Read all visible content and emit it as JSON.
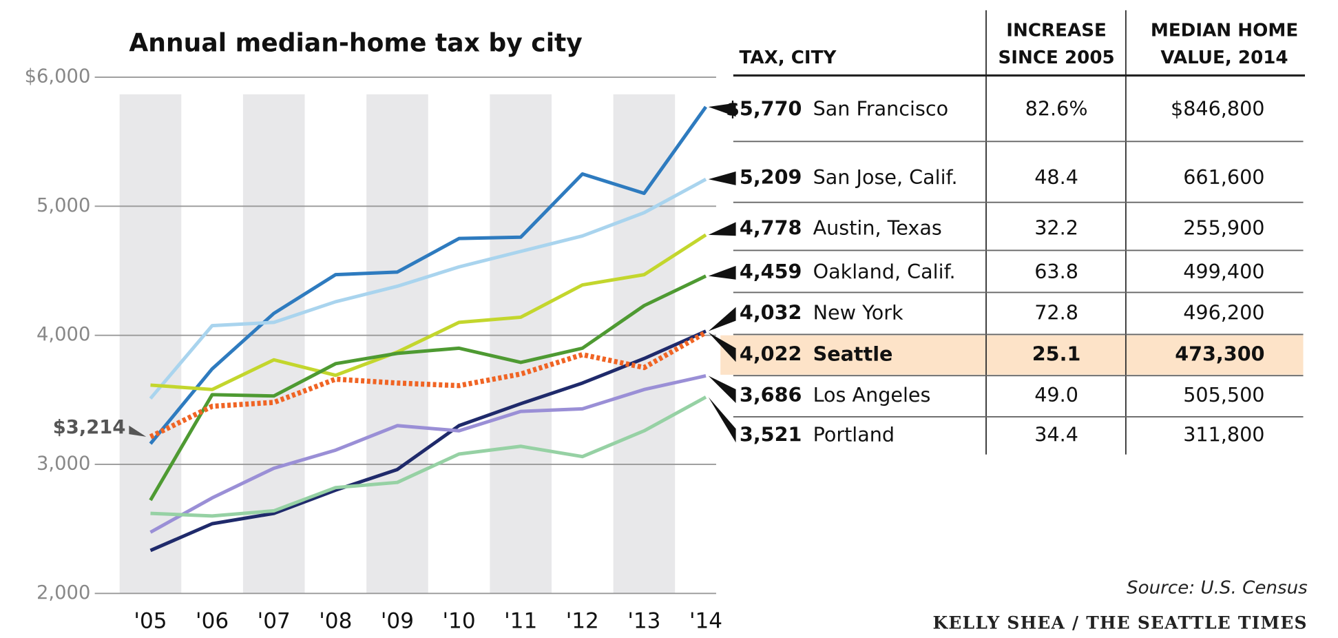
{
  "chart_data": {
    "type": "line",
    "title": "Annual median-home tax by city",
    "categories": [
      "'05",
      "'06",
      "'07",
      "'08",
      "'09",
      "'10",
      "'11",
      "'12",
      "'13",
      "'14"
    ],
    "ylim": [
      2000,
      6000
    ],
    "yticks": [
      {
        "value": 2000,
        "label": "2,000"
      },
      {
        "value": 3000,
        "label": "3,000"
      },
      {
        "value": 4000,
        "label": "4,000"
      },
      {
        "value": 5000,
        "label": "5,000"
      },
      {
        "value": 6000,
        "label": "$6,000"
      }
    ],
    "grid": true,
    "annotation": {
      "text": "$3,214",
      "series": 5,
      "index": 0
    },
    "series": [
      {
        "name": "San Francisco",
        "end_label": "$5,770",
        "color": "#2e7bbf",
        "values": [
          3160,
          3740,
          4170,
          4470,
          4490,
          4750,
          4760,
          5250,
          5100,
          5770
        ]
      },
      {
        "name": "San Jose, Calif.",
        "end_label": "5,209",
        "color": "#a9d4ee",
        "values": [
          3510,
          4075,
          4100,
          4260,
          4380,
          4530,
          4650,
          4770,
          4950,
          5209
        ]
      },
      {
        "name": "Austin, Texas",
        "end_label": "4,778",
        "color": "#c3d62d",
        "values": [
          3614,
          3580,
          3810,
          3690,
          3870,
          4100,
          4140,
          4390,
          4470,
          4778
        ]
      },
      {
        "name": "Oakland, Calif.",
        "end_label": "4,459",
        "color": "#4e9a32",
        "values": [
          2722,
          3540,
          3530,
          3780,
          3860,
          3900,
          3790,
          3900,
          4230,
          4459
        ]
      },
      {
        "name": "New York",
        "end_label": "4,032",
        "color": "#1f2a6b",
        "values": [
          2333,
          2540,
          2620,
          2800,
          2960,
          3300,
          3470,
          3630,
          3820,
          4032
        ]
      },
      {
        "name": "Seattle",
        "end_label": "4,022",
        "color": "#f06424",
        "dashed": true,
        "highlight": true,
        "values": [
          3214,
          3450,
          3480,
          3660,
          3630,
          3610,
          3700,
          3850,
          3750,
          4022
        ]
      },
      {
        "name": "Los Angeles",
        "end_label": "3,686",
        "color": "#9a8fd6",
        "values": [
          2474,
          2740,
          2970,
          3110,
          3300,
          3260,
          3410,
          3430,
          3580,
          3686
        ]
      },
      {
        "name": "Portland",
        "end_label": "3,521",
        "color": "#96d1a4",
        "values": [
          2620,
          2600,
          2640,
          2820,
          2860,
          3080,
          3140,
          3060,
          3260,
          3521
        ]
      }
    ]
  },
  "table": {
    "headers": [
      [
        "TAX, CITY"
      ],
      [
        "INCREASE",
        "SINCE 2005"
      ],
      [
        "MEDIAN HOME",
        "VALUE, 2014"
      ]
    ],
    "rows": [
      [
        "82.6%",
        "$846,800"
      ],
      [
        "48.4",
        "661,600"
      ],
      [
        "32.2",
        "255,900"
      ],
      [
        "63.8",
        "499,400"
      ],
      [
        "72.8",
        "496,200"
      ],
      [
        "25.1",
        "473,300"
      ],
      [
        "49.0",
        "505,500"
      ],
      [
        "34.4",
        "311,800"
      ]
    ]
  },
  "source": "Source: U.S. Census",
  "credit": "KELLY SHEA / THE SEATTLE TIMES"
}
